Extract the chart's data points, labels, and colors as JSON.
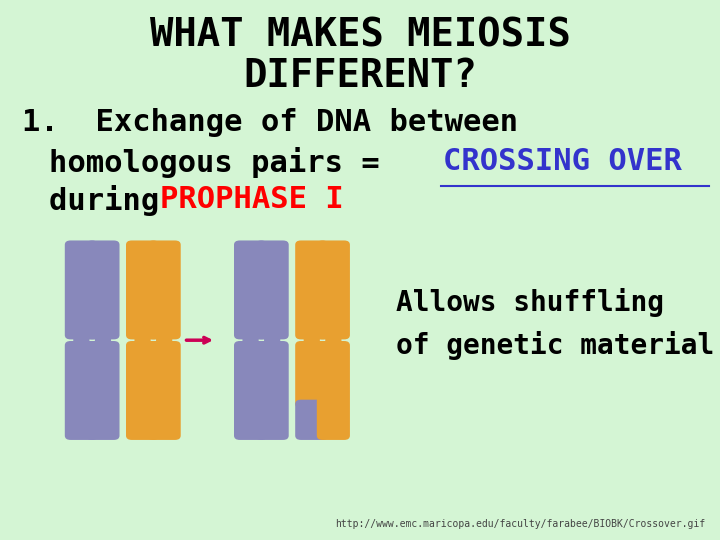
{
  "bg_color": "#d4f5d4",
  "title_line1": "WHAT MAKES MEIOSIS",
  "title_line2": "DIFFERENT?",
  "title_color": "#000000",
  "title_fontsize": 28,
  "body_line1": "1.  Exchange of DNA between",
  "body_line2_black": "homologous pairs = ",
  "body_line2_blue": "CROSSING OVER",
  "body_line3_black": "during ",
  "body_line3_red": "PROPHASE I",
  "body_fontsize": 22,
  "blue_color": "#3333cc",
  "red_color": "#ff0000",
  "black_color": "#000000",
  "arrow_color": "#cc0055",
  "allows_text": "Allows shuffling\nof genetic material",
  "allows_fontsize": 20,
  "url_text": "http://www.emc.maricopa.edu/faculty/farabee/BIOBK/Crossover.gif",
  "url_fontsize": 7,
  "chr_purple": "#8888bb",
  "chr_orange": "#e8a030"
}
